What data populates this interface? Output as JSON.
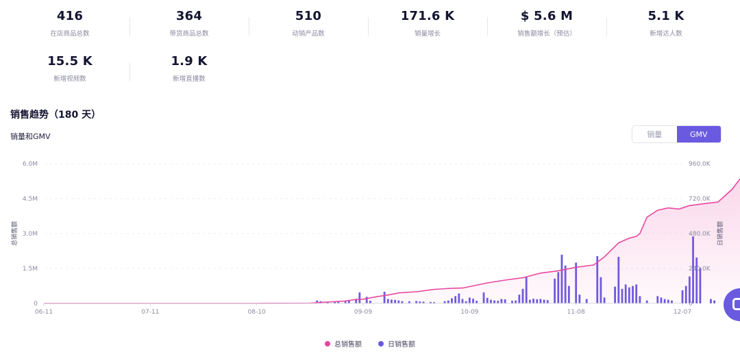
{
  "stats_row1": [
    {
      "value": "416",
      "label": "在店商品总数"
    },
    {
      "value": "364",
      "label": "带货商品总数"
    },
    {
      "value": "510",
      "label": "动销产品数"
    },
    {
      "value": "171.6 K",
      "label": "销量增长"
    },
    {
      "value": "$ 5.6 M",
      "label": "销售额增长（预估）"
    },
    {
      "value": "5.1 K",
      "label": "新增达人数"
    }
  ],
  "stats_row2": [
    {
      "value": "15.5 K",
      "label": "新增视频数"
    },
    {
      "value": "1.9 K",
      "label": "新增直播数"
    }
  ],
  "section_title": "销售趋势（180 天）",
  "chart_subtitle": "销量和GMV",
  "toggle": {
    "option1": "销量",
    "option2": "GMV",
    "selected": "GMV"
  },
  "legend": {
    "total": "总销售额",
    "daily": "日销售额"
  },
  "colors": {
    "total": "#e8479f",
    "daily": "#6a5ae0",
    "accent": "#6a5ae0"
  },
  "float_button_icon": "chat-icon",
  "chart_data": {
    "type": "line+bar",
    "x_ticks": [
      "06-11",
      "07-11",
      "08-10",
      "09-09",
      "10-09",
      "11-08",
      "12-07"
    ],
    "x_tick_index": [
      0,
      30,
      60,
      90,
      120,
      150,
      180
    ],
    "y_left": {
      "label": "总销售额",
      "ticks": [
        "0",
        "1.5M",
        "3.0M",
        "4.5M",
        "6.0M"
      ],
      "max": 6000000
    },
    "y_right": {
      "label": "日销售额",
      "ticks": [
        "0",
        "240.0K",
        "480.0K",
        "720.0K",
        "960.0K"
      ],
      "max": 960000
    },
    "series": [
      {
        "name": "总销售额",
        "axis": "left",
        "type": "area-line",
        "points": [
          [
            0,
            0
          ],
          [
            30,
            0
          ],
          [
            60,
            0
          ],
          [
            75,
            8000
          ],
          [
            80,
            60000
          ],
          [
            85,
            100000
          ],
          [
            88,
            170000
          ],
          [
            90,
            180000
          ],
          [
            94,
            290000
          ],
          [
            97,
            360000
          ],
          [
            100,
            450000
          ],
          [
            105,
            500000
          ],
          [
            110,
            600000
          ],
          [
            115,
            650000
          ],
          [
            118,
            660000
          ],
          [
            120,
            720000
          ],
          [
            125,
            880000
          ],
          [
            130,
            1000000
          ],
          [
            135,
            1100000
          ],
          [
            140,
            1300000
          ],
          [
            145,
            1400000
          ],
          [
            150,
            1550000
          ],
          [
            155,
            1650000
          ],
          [
            158,
            2000000
          ],
          [
            162,
            2600000
          ],
          [
            165,
            2800000
          ],
          [
            167,
            2880000
          ],
          [
            168,
            3000000
          ],
          [
            170,
            3700000
          ],
          [
            173,
            4000000
          ],
          [
            176,
            4100000
          ],
          [
            179,
            4050000
          ],
          [
            182,
            4200000
          ],
          [
            187,
            4300000
          ],
          [
            190,
            4350000
          ],
          [
            194,
            4900000
          ],
          [
            196,
            5300000
          ],
          [
            198,
            5500000
          ],
          [
            200,
            5550000
          ],
          [
            203,
            5580000
          ]
        ]
      },
      {
        "name": "日销售额",
        "axis": "right",
        "type": "bar",
        "points": [
          [
            77,
            20000
          ],
          [
            78,
            15000
          ],
          [
            80,
            12000
          ],
          [
            82,
            14000
          ],
          [
            83,
            16000
          ],
          [
            85,
            18000
          ],
          [
            86,
            22000
          ],
          [
            88,
            28000
          ],
          [
            89,
            75000
          ],
          [
            91,
            45000
          ],
          [
            92,
            18000
          ],
          [
            96,
            80000
          ],
          [
            97,
            30000
          ],
          [
            98,
            26000
          ],
          [
            99,
            24000
          ],
          [
            100,
            20000
          ],
          [
            101,
            15000
          ],
          [
            103,
            14000
          ],
          [
            105,
            16000
          ],
          [
            106,
            13000
          ],
          [
            107,
            12000
          ],
          [
            109,
            10000
          ],
          [
            110,
            8000
          ],
          [
            113,
            15000
          ],
          [
            114,
            20000
          ],
          [
            115,
            35000
          ],
          [
            116,
            50000
          ],
          [
            117,
            68000
          ],
          [
            118,
            30000
          ],
          [
            119,
            15000
          ],
          [
            120,
            40000
          ],
          [
            121,
            32000
          ],
          [
            122,
            18000
          ],
          [
            124,
            75000
          ],
          [
            125,
            38000
          ],
          [
            126,
            25000
          ],
          [
            127,
            20000
          ],
          [
            128,
            18000
          ],
          [
            129,
            30000
          ],
          [
            130,
            28000
          ],
          [
            132,
            18000
          ],
          [
            133,
            20000
          ],
          [
            134,
            60000
          ],
          [
            135,
            100000
          ],
          [
            136,
            180000
          ],
          [
            137,
            25000
          ],
          [
            138,
            32000
          ],
          [
            139,
            28000
          ],
          [
            140,
            30000
          ],
          [
            141,
            25000
          ],
          [
            142,
            22000
          ],
          [
            144,
            170000
          ],
          [
            145,
            215000
          ],
          [
            146,
            335000
          ],
          [
            147,
            260000
          ],
          [
            148,
            120000
          ],
          [
            150,
            280000
          ],
          [
            151,
            60000
          ],
          [
            153,
            30000
          ],
          [
            156,
            325000
          ],
          [
            157,
            180000
          ],
          [
            158,
            40000
          ],
          [
            161,
            115000
          ],
          [
            162,
            320000
          ],
          [
            163,
            100000
          ],
          [
            164,
            130000
          ],
          [
            165,
            110000
          ],
          [
            166,
            120000
          ],
          [
            167,
            130000
          ],
          [
            168,
            50000
          ],
          [
            170,
            20000
          ],
          [
            173,
            50000
          ],
          [
            174,
            40000
          ],
          [
            175,
            30000
          ],
          [
            176,
            25000
          ],
          [
            177,
            20000
          ],
          [
            180,
            90000
          ],
          [
            181,
            120000
          ],
          [
            182,
            185000
          ],
          [
            183,
            460000
          ],
          [
            184,
            315000
          ],
          [
            185,
            245000
          ],
          [
            188,
            30000
          ],
          [
            189,
            20000
          ]
        ]
      }
    ]
  }
}
